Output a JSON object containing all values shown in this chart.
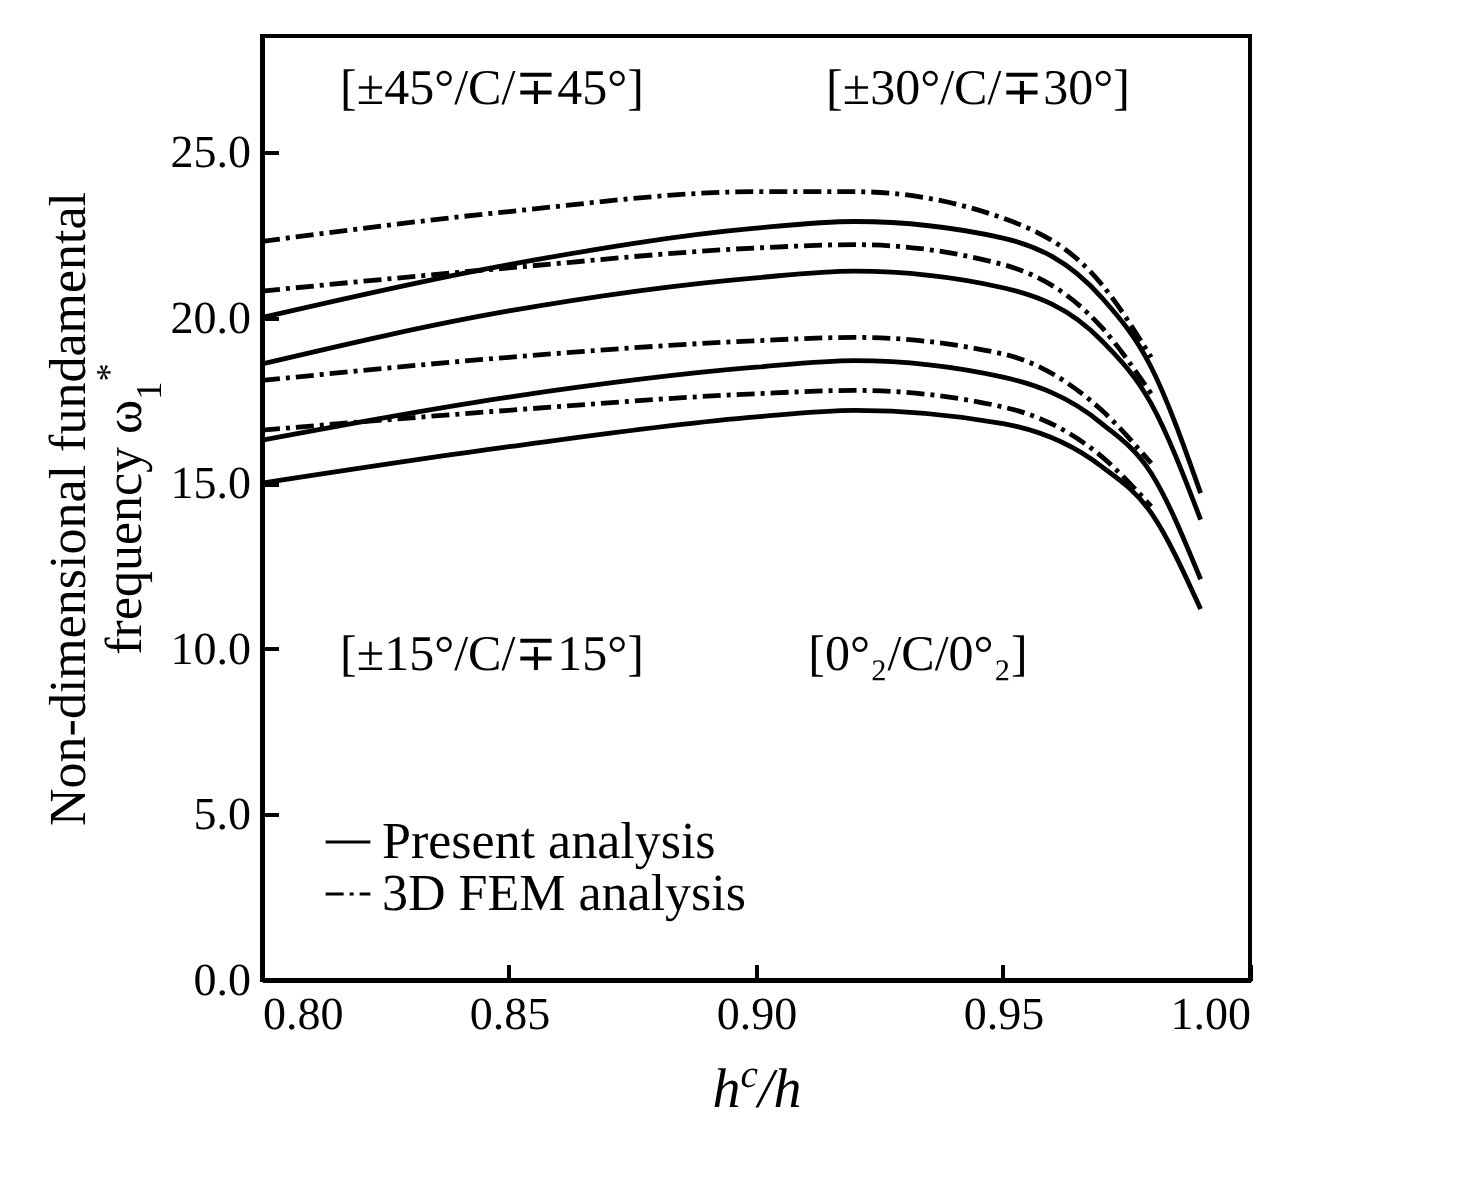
{
  "chart_data": {
    "type": "line",
    "xlabel": "h$^{c}$/h",
    "ylabel": "Non-dimensional fundamental frequency ω$_{1}$$^{*}$",
    "x": [
      0.8,
      0.85,
      0.9,
      0.92,
      0.95,
      0.97,
      0.98,
      0.99
    ],
    "series": [
      {
        "name": "Present analysis",
        "color": "#000000",
        "line_style": "solid",
        "values": [
          20.0,
          21.6,
          22.7,
          22.9,
          22.4,
          20.6,
          18.5,
          14.7
        ]
      },
      {
        "name": "3D FEM analysis",
        "color": "#000000",
        "line_style": "dashed",
        "values": [
          22.3,
          23.2,
          23.8,
          23.8,
          23.0,
          21.0,
          18.8,
          null
        ]
      },
      {
        "color": "#000000",
        "line_style": "solid",
        "values": [
          18.6,
          20.2,
          21.2,
          21.4,
          20.9,
          19.3,
          17.4,
          13.9
        ]
      },
      {
        "color": "#000000",
        "line_style": "dashed",
        "values": [
          20.8,
          21.5,
          22.1,
          22.2,
          21.6,
          19.7,
          17.7,
          null
        ]
      },
      {
        "color": "#000000",
        "line_style": "solid",
        "values": [
          16.3,
          17.6,
          18.5,
          18.7,
          18.2,
          16.8,
          15.3,
          12.1
        ]
      },
      {
        "color": "#000000",
        "line_style": "dashed",
        "values": [
          18.1,
          18.8,
          19.3,
          19.4,
          18.9,
          17.2,
          15.6,
          null
        ]
      },
      {
        "color": "#000000",
        "line_style": "solid",
        "values": [
          15.0,
          16.1,
          17.0,
          17.2,
          16.8,
          15.5,
          14.1,
          11.2
        ]
      },
      {
        "color": "#000000",
        "line_style": "dashed",
        "values": [
          16.6,
          17.2,
          17.7,
          17.8,
          17.3,
          15.8,
          14.3,
          null
        ]
      }
    ],
    "annotations": [
      "[±45°/C/∓45°]",
      "[±30°/C/∓30°]",
      "[±15°/C/∓15°]",
      "[0°₂/C/0°₂]"
    ],
    "xlim": [
      0.8,
      1.0
    ],
    "xticks": [
      {
        "value": 0.8,
        "label": "0.80"
      },
      0.85,
      {
        "value": 0.9,
        "label": "0.90"
      },
      0.95,
      {
        "value": 1.0,
        "label": "1.00"
      }
    ],
    "ylim": [
      0,
      28.5
    ],
    "yticks": [
      {
        "value": 0,
        "label": "0.0"
      },
      {
        "value": 5,
        "label": "5.0"
      },
      {
        "value": 10,
        "label": "10.0"
      },
      {
        "value": 15,
        "label": "15.0"
      },
      {
        "value": 20,
        "label": "20.0"
      },
      {
        "value": 25,
        "label": "25.0"
      }
    ],
    "grid": false,
    "legend": "bottom left",
    "marker": "none"
  }
}
